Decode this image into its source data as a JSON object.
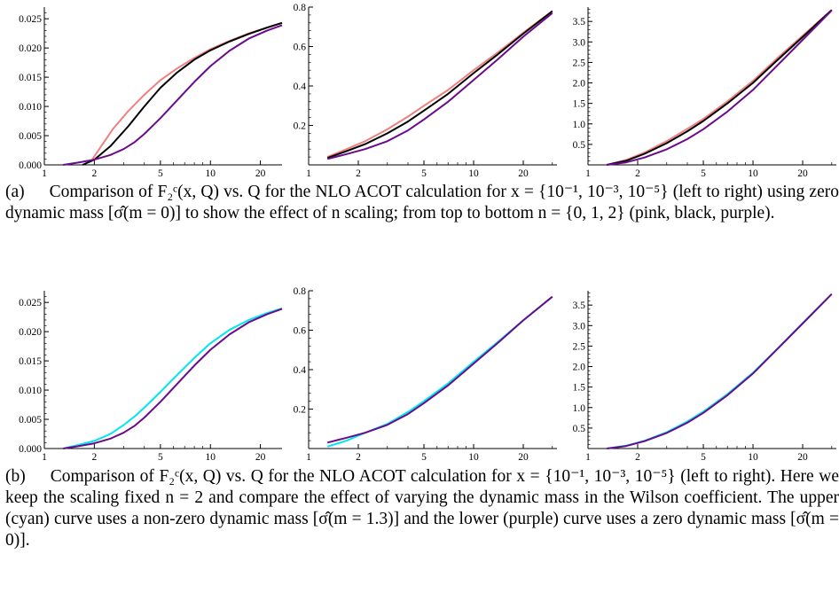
{
  "figures": [
    {
      "id": "a",
      "caption_label": "(a)",
      "caption_text": "Comparison of F₂ᶜ(x, Q) vs. Q for the NLO ACOT calculation for x = {10⁻¹, 10⁻³, 10⁻⁵} (left to right) using zero dynamic mass [σ̂(m = 0)] to show the effect of n scaling; from top to bottom n = {0, 1, 2} (pink, black, purple).",
      "panels": [
        {
          "y_ticks": [
            "0.000",
            "0.005",
            "0.010",
            "0.015",
            "0.020",
            "0.025"
          ],
          "x_ticks": [
            "1",
            "2",
            "5",
            "10",
            "20"
          ],
          "chart_data": {
            "type": "line",
            "xscale": "log",
            "xlim": [
              1,
              27
            ],
            "ylim": [
              0,
              0.027
            ],
            "series": [
              {
                "color": "#f08080",
                "x": [
                  1.9,
                  2.2,
                  2.6,
                  3.2,
                  4,
                  5,
                  6.3,
                  8,
                  10,
                  13,
                  17,
                  22,
                  27
                ],
                "values": [
                  0.0005,
                  0.0032,
                  0.0062,
                  0.0092,
                  0.012,
                  0.0145,
                  0.0165,
                  0.0183,
                  0.0198,
                  0.0212,
                  0.0225,
                  0.0235,
                  0.0243
                ]
              },
              {
                "color": "#000000",
                "x": [
                  1.7,
                  2,
                  2.5,
                  3.2,
                  4,
                  5,
                  6.3,
                  8,
                  10,
                  13,
                  17,
                  22,
                  27
                ],
                "values": [
                  0.0,
                  0.0009,
                  0.0032,
                  0.0066,
                  0.01,
                  0.0132,
                  0.0158,
                  0.018,
                  0.0196,
                  0.0211,
                  0.0224,
                  0.0235,
                  0.0243
                ]
              },
              {
                "color": "#6a0a8c",
                "x": [
                  1.3,
                  1.6,
                  2,
                  2.5,
                  3,
                  3.5,
                  4,
                  5,
                  6,
                  8,
                  10,
                  13,
                  17,
                  22,
                  27
                ],
                "values": [
                  0.0,
                  0.0004,
                  0.0009,
                  0.0017,
                  0.0027,
                  0.0039,
                  0.0053,
                  0.008,
                  0.0104,
                  0.0142,
                  0.0169,
                  0.0195,
                  0.0216,
                  0.023,
                  0.0239
                ]
              }
            ]
          }
        },
        {
          "y_ticks": [
            "0.2",
            "0.4",
            "0.6",
            "0.8"
          ],
          "x_ticks": [
            "1",
            "2",
            "5",
            "10",
            "20"
          ],
          "chart_data": {
            "type": "line",
            "xscale": "log",
            "xlim": [
              1,
              32
            ],
            "ylim": [
              0,
              0.8
            ],
            "series": [
              {
                "color": "#f08080",
                "x": [
                  1.3,
                  1.7,
                  2.2,
                  3,
                  4,
                  5,
                  7,
                  10,
                  14,
                  20,
                  30
                ],
                "values": [
                  0.04,
                  0.08,
                  0.12,
                  0.18,
                  0.245,
                  0.3,
                  0.38,
                  0.48,
                  0.57,
                  0.67,
                  0.78
                ]
              },
              {
                "color": "#000000",
                "x": [
                  1.3,
                  1.7,
                  2.2,
                  3,
                  4,
                  5,
                  7,
                  10,
                  14,
                  20,
                  30
                ],
                "values": [
                  0.035,
                  0.07,
                  0.105,
                  0.16,
                  0.22,
                  0.275,
                  0.36,
                  0.465,
                  0.56,
                  0.665,
                  0.78
                ]
              },
              {
                "color": "#6a0a8c",
                "x": [
                  1.3,
                  1.7,
                  2.2,
                  3,
                  4,
                  5,
                  7,
                  10,
                  14,
                  20,
                  30
                ],
                "values": [
                  0.03,
                  0.055,
                  0.08,
                  0.12,
                  0.175,
                  0.23,
                  0.32,
                  0.43,
                  0.535,
                  0.65,
                  0.77
                ]
              }
            ]
          }
        },
        {
          "y_ticks": [
            "0.5",
            "1.0",
            "1.5",
            "2.0",
            "2.5",
            "3.0",
            "3.5"
          ],
          "x_ticks": [
            "1",
            "2",
            "5",
            "10",
            "20"
          ],
          "chart_data": {
            "type": "line",
            "xscale": "log",
            "xlim": [
              1,
              32
            ],
            "ylim": [
              0,
              3.85
            ],
            "series": [
              {
                "color": "#f08080",
                "x": [
                  1.3,
                  1.7,
                  2.2,
                  3,
                  4,
                  5,
                  7,
                  10,
                  14,
                  20,
                  30
                ],
                "values": [
                  0.0,
                  0.12,
                  0.3,
                  0.58,
                  0.88,
                  1.12,
                  1.55,
                  2.05,
                  2.6,
                  3.15,
                  3.78
                ]
              },
              {
                "color": "#000000",
                "x": [
                  1.3,
                  1.7,
                  2.2,
                  3,
                  4,
                  5,
                  7,
                  10,
                  14,
                  20,
                  30
                ],
                "values": [
                  0.0,
                  0.1,
                  0.27,
                  0.53,
                  0.82,
                  1.07,
                  1.5,
                  2.0,
                  2.55,
                  3.12,
                  3.78
                ]
              },
              {
                "color": "#6a0a8c",
                "x": [
                  1.3,
                  1.7,
                  2.2,
                  3,
                  4,
                  5,
                  7,
                  10,
                  14,
                  20,
                  30
                ],
                "values": [
                  0.0,
                  0.06,
                  0.18,
                  0.38,
                  0.63,
                  0.87,
                  1.3,
                  1.83,
                  2.42,
                  3.05,
                  3.77
                ]
              }
            ]
          }
        }
      ]
    },
    {
      "id": "b",
      "caption_label": "(b)",
      "caption_text": "Comparison of F₂ᶜ(x, Q) vs. Q for the NLO ACOT calculation for x = {10⁻¹, 10⁻³, 10⁻⁵} (left to right). Here we keep the scaling fixed n = 2 and compare the effect of varying the dynamic mass in the Wilson coefficient. The upper (cyan) curve uses a non-zero dynamic mass [σ̂(m = 1.3)] and the lower (purple) curve uses a zero dynamic mass [σ̂(m = 0)].",
      "panels": [
        {
          "y_ticks": [
            "0.000",
            "0.005",
            "0.010",
            "0.015",
            "0.020",
            "0.025"
          ],
          "x_ticks": [
            "1",
            "2",
            "5",
            "10",
            "20"
          ],
          "chart_data": {
            "type": "line",
            "xscale": "log",
            "xlim": [
              1,
              27
            ],
            "ylim": [
              0,
              0.027
            ],
            "series": [
              {
                "color": "#00e5f0",
                "x": [
                  1.3,
                  1.6,
                  2,
                  2.5,
                  3,
                  3.5,
                  4,
                  5,
                  6,
                  8,
                  10,
                  13,
                  17,
                  22,
                  27
                ],
                "values": [
                  0.0,
                  0.0006,
                  0.0013,
                  0.0025,
                  0.004,
                  0.0055,
                  0.007,
                  0.0097,
                  0.012,
                  0.0155,
                  0.018,
                  0.0203,
                  0.022,
                  0.0232,
                  0.024
                ]
              },
              {
                "color": "#6a0a8c",
                "x": [
                  1.3,
                  1.6,
                  2,
                  2.5,
                  3,
                  3.5,
                  4,
                  5,
                  6,
                  8,
                  10,
                  13,
                  17,
                  22,
                  27
                ],
                "values": [
                  0.0,
                  0.0004,
                  0.0009,
                  0.0017,
                  0.0027,
                  0.0039,
                  0.0053,
                  0.008,
                  0.0104,
                  0.0142,
                  0.0169,
                  0.0195,
                  0.0216,
                  0.023,
                  0.0239
                ]
              }
            ]
          }
        },
        {
          "y_ticks": [
            "0.2",
            "0.4",
            "0.6",
            "0.8"
          ],
          "x_ticks": [
            "1",
            "2",
            "5",
            "10",
            "20"
          ],
          "chart_data": {
            "type": "line",
            "xscale": "log",
            "xlim": [
              1,
              32
            ],
            "ylim": [
              0,
              0.8
            ],
            "series": [
              {
                "color": "#00e5f0",
                "x": [
                  1.3,
                  1.7,
                  2.2,
                  3,
                  4,
                  5,
                  7,
                  10,
                  14,
                  20,
                  30
                ],
                "values": [
                  0.01,
                  0.04,
                  0.08,
                  0.125,
                  0.185,
                  0.24,
                  0.33,
                  0.44,
                  0.54,
                  0.65,
                  0.77
                ]
              },
              {
                "color": "#6a0a8c",
                "x": [
                  1.3,
                  1.7,
                  2.2,
                  3,
                  4,
                  5,
                  7,
                  10,
                  14,
                  20,
                  30
                ],
                "values": [
                  0.03,
                  0.055,
                  0.08,
                  0.12,
                  0.175,
                  0.23,
                  0.32,
                  0.43,
                  0.535,
                  0.65,
                  0.77
                ]
              }
            ]
          }
        },
        {
          "y_ticks": [
            "0.5",
            "1.0",
            "1.5",
            "2.0",
            "2.5",
            "3.0",
            "3.5"
          ],
          "x_ticks": [
            "1",
            "2",
            "5",
            "10",
            "20"
          ],
          "chart_data": {
            "type": "line",
            "xscale": "log",
            "xlim": [
              1,
              32
            ],
            "ylim": [
              0,
              3.85
            ],
            "series": [
              {
                "color": "#00e5f0",
                "x": [
                  1.3,
                  1.7,
                  2.2,
                  3,
                  4,
                  5,
                  7,
                  10,
                  14,
                  20,
                  30
                ],
                "values": [
                  0.0,
                  0.07,
                  0.19,
                  0.4,
                  0.66,
                  0.9,
                  1.33,
                  1.85,
                  2.43,
                  3.06,
                  3.77
                ]
              },
              {
                "color": "#6a0a8c",
                "x": [
                  1.3,
                  1.7,
                  2.2,
                  3,
                  4,
                  5,
                  7,
                  10,
                  14,
                  20,
                  30
                ],
                "values": [
                  0.0,
                  0.06,
                  0.18,
                  0.38,
                  0.63,
                  0.87,
                  1.3,
                  1.83,
                  2.42,
                  3.05,
                  3.77
                ]
              }
            ]
          }
        }
      ]
    }
  ]
}
